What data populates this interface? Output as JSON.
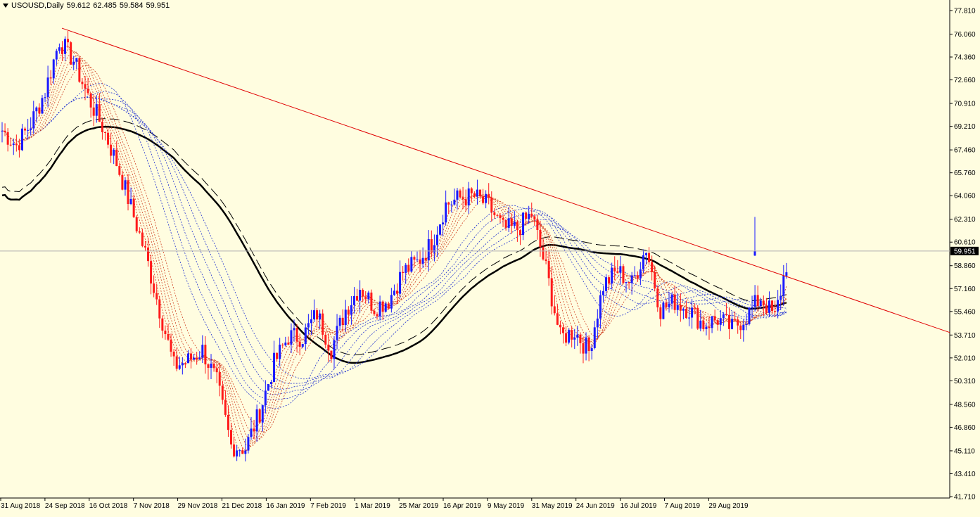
{
  "header": {
    "symbol": "USOUSD,Daily",
    "open": "59.612",
    "high": "62.485",
    "low": "59.584",
    "close": "59.951"
  },
  "chart_data": {
    "type": "candlestick",
    "symbol": "USOUSD",
    "timeframe": "Daily",
    "y_axis": {
      "ticks": [
        "77.810",
        "76.060",
        "74.360",
        "72.660",
        "70.910",
        "69.210",
        "67.460",
        "65.760",
        "64.060",
        "62.310",
        "60.610",
        "58.860",
        "57.160",
        "55.460",
        "53.710",
        "52.010",
        "50.310",
        "48.560",
        "46.860",
        "45.110",
        "43.410",
        "41.710"
      ],
      "ylim": [
        41.71,
        77.81
      ]
    },
    "x_axis": {
      "ticks": [
        "31 Aug 2018",
        "24 Sep 2018",
        "16 Oct 2018",
        "7 Nov 2018",
        "29 Nov 2018",
        "21 Dec 2018",
        "16 Jan 2019",
        "7 Feb 2019",
        "1 Mar 2019",
        "25 Mar 2019",
        "16 Apr 2019",
        "9 May 2019",
        "31 May 2019",
        "24 Jun 2019",
        "16 Jul 2019",
        "7 Aug 2019",
        "29 Aug 2019"
      ]
    },
    "current_price": "59.951",
    "colors": {
      "background": "#fffde0",
      "bull_candle": "#1a1aff",
      "bear_candle": "#ff1a1a",
      "trendline": "#e00000",
      "fast_ma_ribbon": "#d04020",
      "slow_ma_ribbon": "#2030d0",
      "long_ma": "#000000",
      "price_label_bg": "#000000"
    },
    "price_path": [
      {
        "date": "31 Aug 2018",
        "close": 68.9
      },
      {
        "date": "7 Sep 2018",
        "close": 67.8
      },
      {
        "date": "14 Sep 2018",
        "close": 69.4
      },
      {
        "date": "21 Sep 2018",
        "close": 71.8
      },
      {
        "date": "28 Sep 2018",
        "close": 75.6
      },
      {
        "date": "5 Oct 2018",
        "close": 74.1
      },
      {
        "date": "12 Oct 2018",
        "close": 71.4
      },
      {
        "date": "19 Oct 2018",
        "close": 69.2
      },
      {
        "date": "26 Oct 2018",
        "close": 66.5
      },
      {
        "date": "2 Nov 2018",
        "close": 63.2
      },
      {
        "date": "9 Nov 2018",
        "close": 59.8
      },
      {
        "date": "16 Nov 2018",
        "close": 55.6
      },
      {
        "date": "23 Nov 2018",
        "close": 51.4
      },
      {
        "date": "30 Nov 2018",
        "close": 51.8
      },
      {
        "date": "7 Dec 2018",
        "close": 52.6
      },
      {
        "date": "14 Dec 2018",
        "close": 50.2
      },
      {
        "date": "21 Dec 2018",
        "close": 45.5
      },
      {
        "date": "28 Dec 2018",
        "close": 45.3
      },
      {
        "date": "4 Jan 2019",
        "close": 48.0
      },
      {
        "date": "11 Jan 2019",
        "close": 51.6
      },
      {
        "date": "18 Jan 2019",
        "close": 53.6
      },
      {
        "date": "25 Jan 2019",
        "close": 53.6
      },
      {
        "date": "1 Feb 2019",
        "close": 55.3
      },
      {
        "date": "8 Feb 2019",
        "close": 52.7
      },
      {
        "date": "15 Feb 2019",
        "close": 55.6
      },
      {
        "date": "22 Feb 2019",
        "close": 57.3
      },
      {
        "date": "1 Mar 2019",
        "close": 55.8
      },
      {
        "date": "8 Mar 2019",
        "close": 56.3
      },
      {
        "date": "15 Mar 2019",
        "close": 58.4
      },
      {
        "date": "22 Mar 2019",
        "close": 59.1
      },
      {
        "date": "29 Mar 2019",
        "close": 60.5
      },
      {
        "date": "5 Apr 2019",
        "close": 63.4
      },
      {
        "date": "12 Apr 2019",
        "close": 63.9
      },
      {
        "date": "19 Apr 2019",
        "close": 64.0
      },
      {
        "date": "26 Apr 2019",
        "close": 63.3
      },
      {
        "date": "3 May 2019",
        "close": 61.6
      },
      {
        "date": "10 May 2019",
        "close": 61.6
      },
      {
        "date": "17 May 2019",
        "close": 62.7
      },
      {
        "date": "24 May 2019",
        "close": 58.6
      },
      {
        "date": "31 May 2019",
        "close": 53.5
      },
      {
        "date": "7 Jun 2019",
        "close": 54.0
      },
      {
        "date": "14 Jun 2019",
        "close": 52.5
      },
      {
        "date": "21 Jun 2019",
        "close": 57.4
      },
      {
        "date": "28 Jun 2019",
        "close": 58.5
      },
      {
        "date": "5 Jul 2019",
        "close": 57.5
      },
      {
        "date": "12 Jul 2019",
        "close": 60.2
      },
      {
        "date": "19 Jul 2019",
        "close": 55.6
      },
      {
        "date": "26 Jul 2019",
        "close": 56.2
      },
      {
        "date": "2 Aug 2019",
        "close": 55.6
      },
      {
        "date": "9 Aug 2019",
        "close": 54.5
      },
      {
        "date": "16 Aug 2019",
        "close": 54.9
      },
      {
        "date": "23 Aug 2019",
        "close": 54.2
      },
      {
        "date": "30 Aug 2019",
        "close": 55.1
      },
      {
        "date": "6 Sep 2019",
        "close": 56.5
      },
      {
        "date": "13 Sep 2019",
        "close": 55.0
      },
      {
        "date": "16 Sep 2019",
        "close": 59.95
      }
    ],
    "trendline": {
      "from": {
        "date": "28 Sep 2018",
        "price": 76.5
      },
      "to": {
        "date": "29 Aug 2019+",
        "price": 54.4
      }
    },
    "last_bar": {
      "open": 59.612,
      "high": 62.485,
      "low": 59.584,
      "close": 59.951
    }
  }
}
